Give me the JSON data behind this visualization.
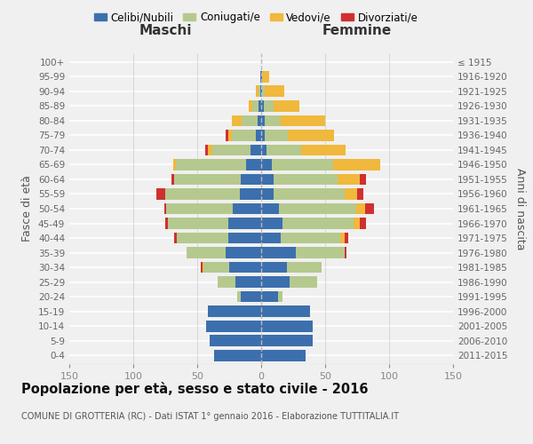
{
  "age_groups": [
    "100+",
    "95-99",
    "90-94",
    "85-89",
    "80-84",
    "75-79",
    "70-74",
    "65-69",
    "60-64",
    "55-59",
    "50-54",
    "45-49",
    "40-44",
    "35-39",
    "30-34",
    "25-29",
    "20-24",
    "15-19",
    "10-14",
    "5-9",
    "0-4"
  ],
  "birth_years": [
    "≤ 1915",
    "1916-1920",
    "1921-1925",
    "1926-1930",
    "1931-1935",
    "1936-1940",
    "1941-1945",
    "1946-1950",
    "1951-1955",
    "1956-1960",
    "1961-1965",
    "1966-1970",
    "1971-1975",
    "1976-1980",
    "1981-1985",
    "1986-1990",
    "1991-1995",
    "1996-2000",
    "2001-2005",
    "2006-2010",
    "2011-2015"
  ],
  "maschi_celibi": [
    0,
    1,
    1,
    2,
    3,
    4,
    8,
    12,
    16,
    17,
    22,
    26,
    26,
    28,
    25,
    20,
    16,
    42,
    43,
    40,
    37
  ],
  "maschi_coniugati": [
    0,
    0,
    1,
    5,
    12,
    19,
    30,
    55,
    52,
    58,
    52,
    47,
    40,
    30,
    20,
    14,
    3,
    0,
    0,
    0,
    0
  ],
  "maschi_vedovi": [
    0,
    0,
    2,
    3,
    8,
    3,
    4,
    2,
    0,
    0,
    0,
    0,
    0,
    0,
    1,
    0,
    0,
    0,
    0,
    0,
    0
  ],
  "maschi_divorziati": [
    0,
    0,
    0,
    0,
    0,
    2,
    2,
    0,
    2,
    7,
    2,
    2,
    2,
    0,
    1,
    0,
    0,
    0,
    0,
    0,
    0
  ],
  "femmine_nubili": [
    0,
    1,
    1,
    2,
    3,
    3,
    4,
    8,
    10,
    10,
    14,
    17,
    15,
    27,
    20,
    22,
    13,
    38,
    40,
    40,
    35
  ],
  "femmine_coniugate": [
    0,
    0,
    2,
    8,
    12,
    18,
    27,
    48,
    50,
    55,
    60,
    55,
    47,
    38,
    27,
    22,
    4,
    0,
    0,
    0,
    0
  ],
  "femmine_vedove": [
    0,
    5,
    15,
    20,
    35,
    36,
    35,
    37,
    17,
    10,
    7,
    5,
    3,
    0,
    0,
    0,
    0,
    0,
    0,
    0,
    0
  ],
  "femmine_divorziate": [
    0,
    0,
    0,
    0,
    0,
    0,
    0,
    0,
    5,
    5,
    7,
    5,
    3,
    2,
    0,
    0,
    0,
    0,
    0,
    0,
    0
  ],
  "color_celibi": "#3c6fad",
  "color_coniugati": "#b5c98e",
  "color_vedovi": "#f0b83c",
  "color_divorziati": "#d03030",
  "xlim": 150,
  "bg_color": "#f0f0f0",
  "title": "Popolazione per età, sesso e stato civile - 2016",
  "subtitle": "COMUNE DI GROTTERIA (RC) - Dati ISTAT 1° gennaio 2016 - Elaborazione TUTTITALIA.IT",
  "label_maschi": "Maschi",
  "label_femmine": "Femmine",
  "ylabel_left": "Fasce di età",
  "ylabel_right": "Anni di nascita",
  "legend": [
    "Celibi/Nubili",
    "Coniugati/e",
    "Vedovi/e",
    "Divorziati/e"
  ]
}
